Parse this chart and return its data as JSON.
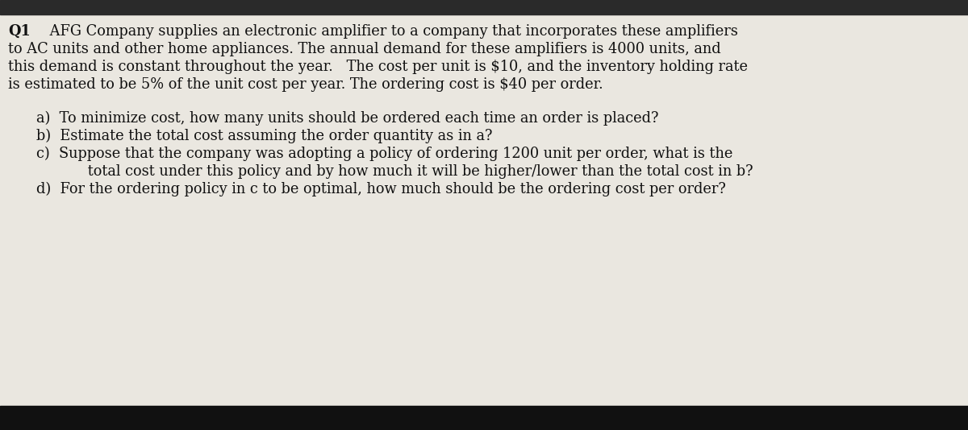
{
  "background_color": "#c8c4bc",
  "top_bar_color": "#2a2a2a",
  "bottom_bar_color": "#111111",
  "paper_color": "#eae7e0",
  "title_bold": "Q1",
  "title_normal": " AFG Company supplies an electronic amplifier to a company that incorporates these amplifiers",
  "line2": "to AC units and other home appliances. The annual demand for these amplifiers is 4000 units, and",
  "line3": "this demand is constant throughout the year.   The cost per unit is $10, and the inventory holding rate",
  "line4": "is estimated to be 5% of the unit cost per year. The ordering cost is $40 per order.",
  "item_a": "a)  To minimize cost, how many units should be ordered each time an order is placed?",
  "item_b": "b)  Estimate the total cost assuming the order quantity as in a?",
  "item_c1": "c)  Suppose that the company was adopting a policy of ordering 1200 unit per order, what is the",
  "item_c2": "      total cost under this policy and by how much it will be higher/lower than the total cost in b?",
  "item_d": "d)  For the ordering policy in c to be optimal, how much should be the ordering cost per order?",
  "text_color": "#111111",
  "font_size": 12.8
}
